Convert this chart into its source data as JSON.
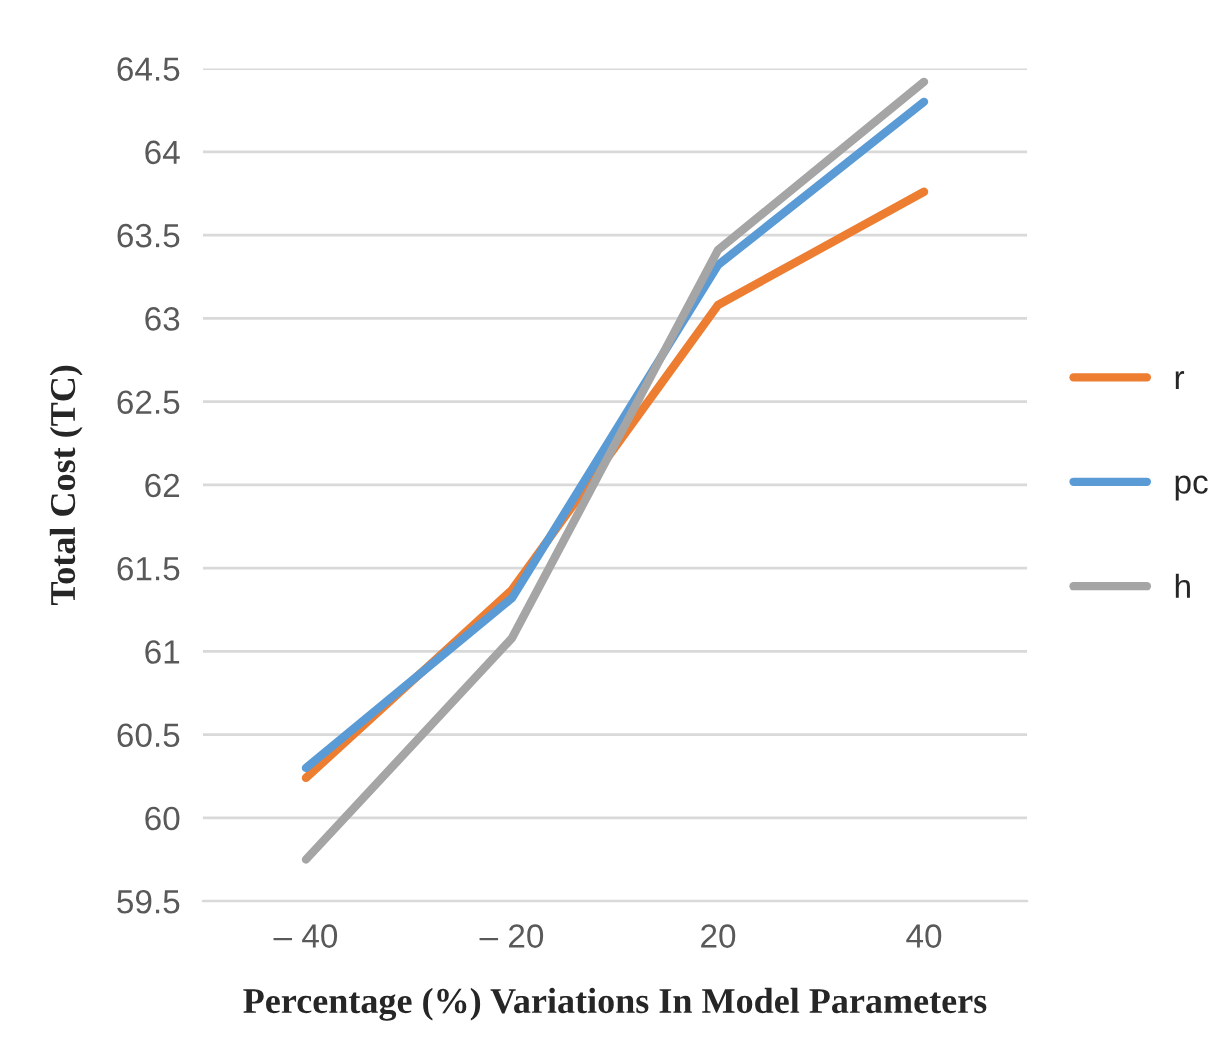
{
  "chart_data": {
    "type": "line",
    "xlabel": "Percentage (%) Variations In Model Parameters",
    "ylabel": "Total Cost (TC)",
    "categories": [
      "– 40",
      "– 20",
      "20",
      "40"
    ],
    "series": [
      {
        "name": "r",
        "color": "#ed7d31",
        "values": [
          60.24,
          61.37,
          63.08,
          63.76
        ]
      },
      {
        "name": "pc",
        "color": "#5b9bd5",
        "values": [
          60.3,
          61.32,
          63.32,
          64.3
        ]
      },
      {
        "name": "h",
        "color": "#a5a5a5",
        "values": [
          59.75,
          61.08,
          63.41,
          64.42
        ]
      }
    ],
    "ylim": [
      59.5,
      64.5
    ],
    "yticks": [
      59.5,
      60,
      60.5,
      61,
      61.5,
      62,
      62.5,
      63,
      63.5,
      64,
      64.5
    ],
    "grid": "y",
    "legend": "right",
    "marker": "none",
    "line_style": "solid"
  }
}
